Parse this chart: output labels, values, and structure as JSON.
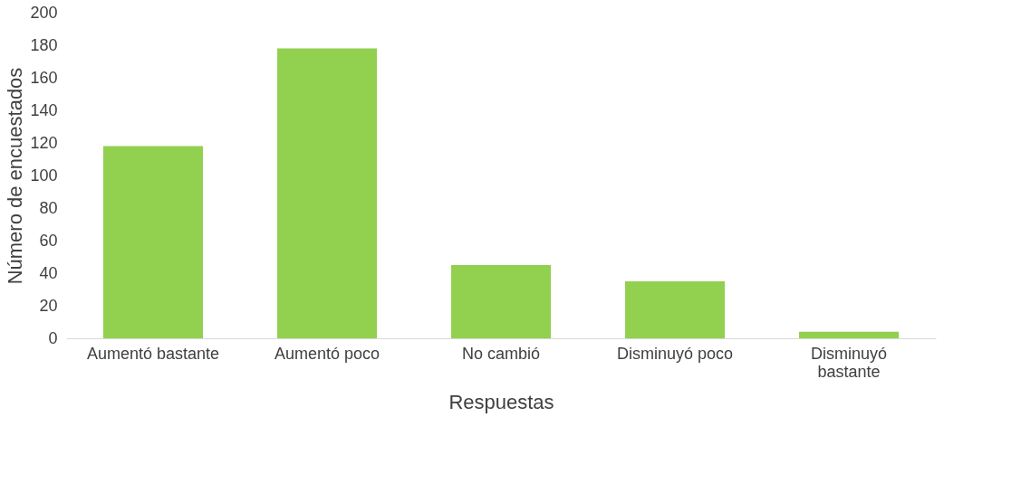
{
  "chart_data": {
    "type": "bar",
    "xlabel": "Respuestas",
    "ylabel": "Número de encuestados",
    "categories": [
      "Aumentó bastante",
      "Aumentó poco",
      "No cambió",
      "Disminuyó poco",
      "Disminuyó bastante"
    ],
    "series": [
      {
        "color": "#92d050",
        "values": [
          118,
          178,
          45,
          35,
          4
        ]
      }
    ],
    "ylim": [
      0,
      200
    ],
    "yticks": [
      0,
      20,
      40,
      60,
      80,
      100,
      120,
      140,
      160,
      180,
      200
    ],
    "grid": false
  }
}
